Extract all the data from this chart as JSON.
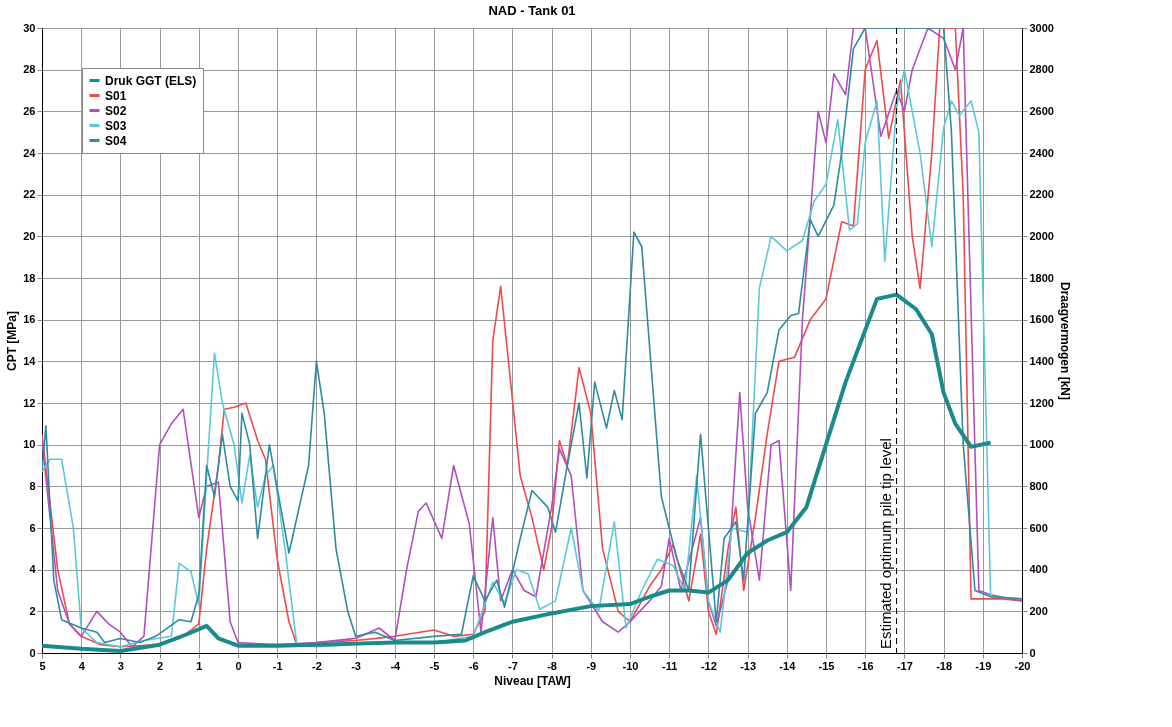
{
  "chart_data": {
    "type": "line",
    "title": "NAD - Tank 01",
    "xlabel": "Niveau [TAW]",
    "ylabel": "CPT [MPa]",
    "y2label": "Draagvermogen [kN]",
    "xlim": [
      5,
      -20
    ],
    "xticks": [
      5,
      4,
      3,
      2,
      1,
      0,
      -1,
      -2,
      -3,
      -4,
      -5,
      -6,
      -7,
      -8,
      -9,
      -10,
      -11,
      -12,
      -13,
      -14,
      -15,
      -16,
      -17,
      -18,
      -19,
      -20
    ],
    "ylim": [
      0,
      30
    ],
    "yticks": [
      0,
      2,
      4,
      6,
      8,
      10,
      12,
      14,
      16,
      18,
      20,
      22,
      24,
      26,
      28,
      30
    ],
    "y2lim": [
      0,
      3000
    ],
    "y2ticks": [
      0,
      200,
      400,
      600,
      800,
      1000,
      1200,
      1400,
      1600,
      1800,
      2000,
      2200,
      2400,
      2600,
      2800,
      3000
    ],
    "grid": true,
    "legend": "top left",
    "marker": "none",
    "line_style": "solid",
    "ref_lines": [
      {
        "axis": "x",
        "value": -16.8,
        "label": "Estimated optimum pile tip level",
        "color": "#000000",
        "line_style": "dashed"
      }
    ],
    "series": [
      {
        "name": "Druk GGT (ELS)",
        "color": "#1a8a8a",
        "axis": "y2",
        "x": [
          5,
          4,
          3,
          2,
          1.3,
          0.8,
          0.5,
          0,
          -1,
          -2,
          -3,
          -4,
          -5,
          -5.8,
          -6.3,
          -7,
          -8,
          -9,
          -10,
          -10.5,
          -11,
          -11.5,
          -12,
          -12.5,
          -13,
          -13.5,
          -14,
          -14.5,
          -15,
          -15.5,
          -16,
          -16.3,
          -16.8,
          -17.3,
          -17.7,
          -18,
          -18.3,
          -18.7,
          -19.2
        ],
        "values": [
          35,
          20,
          10,
          40,
          90,
          130,
          70,
          35,
          35,
          40,
          45,
          50,
          50,
          60,
          100,
          150,
          190,
          225,
          235,
          270,
          300,
          300,
          290,
          350,
          480,
          540,
          580,
          700,
          1000,
          1300,
          1550,
          1700,
          1720,
          1650,
          1530,
          1250,
          1100,
          990,
          1010
        ]
      },
      {
        "name": "S01",
        "color": "#f04a4a",
        "x": [
          5,
          4.6,
          4.3,
          4,
          3.5,
          3,
          2,
          1.5,
          1.2,
          1,
          0.8,
          0.5,
          0.35,
          0.1,
          -0.2,
          -0.5,
          -0.7,
          -1,
          -1.3,
          -1.5,
          -2,
          -3,
          -4,
          -5,
          -5.5,
          -6,
          -6.3,
          -6.5,
          -6.7,
          -6.9,
          -7.2,
          -7.5,
          -7.8,
          -8,
          -8.2,
          -8.4,
          -8.7,
          -9,
          -9.3,
          -9.7,
          -10,
          -10.5,
          -10.8,
          -11.1,
          -11.5,
          -11.8,
          -12,
          -12.2,
          -12.5,
          -12.7,
          -12.9,
          -13.2,
          -13.5,
          -13.8,
          -14.2,
          -14.6,
          -15,
          -15.4,
          -15.7,
          -16,
          -16.3,
          -16.6,
          -16.9,
          -17.2,
          -17.4,
          -17.7,
          -17.9,
          -18.3,
          -18.5,
          -18.7,
          -19,
          -19.5,
          -20
        ],
        "values": [
          10.5,
          4,
          1.4,
          0.8,
          0.4,
          0.3,
          0.4,
          0.7,
          1.1,
          1.4,
          5,
          9,
          11.7,
          11.8,
          12,
          10.2,
          9.3,
          4.5,
          1.5,
          0.4,
          0.5,
          0.6,
          0.8,
          1.1,
          0.8,
          0.9,
          2,
          15,
          17.6,
          14,
          8.5,
          6.5,
          4,
          6,
          10.2,
          9,
          13.7,
          11.5,
          5,
          2,
          1.5,
          3.2,
          4,
          5.2,
          2.5,
          5.7,
          2,
          0.9,
          5,
          7,
          3,
          6.5,
          10.5,
          14,
          14.2,
          16,
          17,
          20.7,
          20.5,
          28,
          29.4,
          24.7,
          27.5,
          20,
          17.5,
          24,
          30,
          30,
          22,
          2.6,
          2.6,
          2.6,
          2.5
        ]
      },
      {
        "name": "S02",
        "color": "#b050c0",
        "x": [
          5,
          4.6,
          4.3,
          4,
          3.6,
          3.3,
          3,
          2.7,
          2.4,
          2,
          1.7,
          1.4,
          1,
          0.8,
          0.5,
          0.2,
          0,
          -1,
          -2,
          -3,
          -3.6,
          -4,
          -4.3,
          -4.6,
          -4.8,
          -5.2,
          -5.5,
          -5.9,
          -6.2,
          -6.5,
          -6.7,
          -7,
          -7.3,
          -7.6,
          -8,
          -8.2,
          -8.5,
          -8.8,
          -9.3,
          -9.7,
          -10,
          -10.5,
          -10.8,
          -11,
          -11.3,
          -11.8,
          -12,
          -12.2,
          -12.5,
          -12.8,
          -13,
          -13.3,
          -13.6,
          -13.8,
          -14.1,
          -14.4,
          -14.8,
          -15,
          -15.2,
          -15.5,
          -15.7,
          -16,
          -16.4,
          -16.8,
          -17,
          -17.2,
          -17.6,
          -18,
          -18.3,
          -18.5,
          -18.9,
          -19.2,
          -20
        ],
        "values": [
          10.2,
          3,
          1.4,
          0.8,
          2,
          1.4,
          1,
          0.3,
          0.8,
          10,
          11,
          11.7,
          6.5,
          8,
          8.2,
          1.5,
          0.5,
          0.4,
          0.5,
          0.7,
          1.2,
          0.6,
          4,
          6.8,
          7.2,
          5.5,
          9,
          6.2,
          1,
          6.5,
          2.5,
          4,
          3,
          2.7,
          7,
          9.8,
          8.5,
          3,
          1.5,
          1,
          1.5,
          2.5,
          3.2,
          5.5,
          3,
          6.5,
          2.5,
          1.3,
          3.5,
          12.5,
          7,
          3.5,
          10,
          10.2,
          3,
          16,
          26,
          24.5,
          27.8,
          26.8,
          30,
          30,
          24.8,
          27,
          26,
          28,
          30,
          29.5,
          28,
          30,
          3,
          2.8,
          2.5
        ]
      },
      {
        "name": "S03",
        "color": "#5bc8dc",
        "x": [
          5,
          4.8,
          4.5,
          4.2,
          4,
          3.6,
          3,
          2.4,
          1.7,
          1.5,
          1.2,
          1,
          0.8,
          0.6,
          0.4,
          0.1,
          -0.1,
          -0.3,
          -0.5,
          -0.7,
          -0.9,
          -1.2,
          -1.5,
          -2,
          -3,
          -4,
          -5,
          -6,
          -6.5,
          -6.8,
          -7.1,
          -7.4,
          -7.7,
          -8.1,
          -8.5,
          -8.8,
          -9.2,
          -9.6,
          -9.9,
          -10.3,
          -10.7,
          -11.1,
          -11.4,
          -11.7,
          -12,
          -12.3,
          -12.6,
          -13,
          -13.3,
          -13.6,
          -14,
          -14.4,
          -14.7,
          -15,
          -15.3,
          -15.6,
          -15.8,
          -16,
          -16.3,
          -16.5,
          -16.8,
          -17,
          -17.4,
          -17.7,
          -18,
          -18.2,
          -18.4,
          -18.7,
          -18.9,
          -19.2,
          -20
        ],
        "values": [
          8.7,
          9.3,
          9.3,
          6,
          1.2,
          0.5,
          0.3,
          0.6,
          0.8,
          4.3,
          3.9,
          2.3,
          8.5,
          14.4,
          12,
          10,
          7.2,
          9.5,
          7,
          8.5,
          9,
          5,
          0.4,
          0.3,
          0.4,
          0.5,
          0.5,
          0.8,
          3.4,
          2.4,
          4,
          3.8,
          2.1,
          2.5,
          6,
          3,
          2,
          6.3,
          1.2,
          3,
          4.5,
          4.2,
          3,
          8.5,
          2.5,
          1,
          6,
          5.8,
          17.5,
          20,
          19.3,
          19.8,
          21.7,
          22.5,
          25.6,
          20.3,
          20.6,
          24.5,
          26.5,
          18.8,
          26.2,
          28,
          24,
          19.5,
          25.2,
          26.5,
          25.8,
          26.5,
          25,
          2.7,
          2.6
        ]
      },
      {
        "name": "S04",
        "color": "#2e8ca0",
        "x": [
          5,
          4.9,
          4.7,
          4.5,
          4,
          3.6,
          3.4,
          3,
          2.5,
          2.1,
          1.5,
          1.2,
          1,
          0.8,
          0.6,
          0.4,
          0.2,
          0,
          -0.1,
          -0.3,
          -0.5,
          -0.8,
          -1.3,
          -1.8,
          -2,
          -2.2,
          -2.5,
          -2.8,
          -3,
          -3.5,
          -4,
          -5,
          -5.7,
          -6,
          -6.3,
          -6.6,
          -6.8,
          -7.2,
          -7.5,
          -7.9,
          -8.1,
          -8.4,
          -8.7,
          -8.9,
          -9.1,
          -9.4,
          -9.6,
          -9.8,
          -10.1,
          -10.3,
          -10.8,
          -11.2,
          -11.5,
          -11.8,
          -12.2,
          -12.4,
          -12.7,
          -12.9,
          -13.2,
          -13.5,
          -13.8,
          -14.1,
          -14.3,
          -14.6,
          -14.8,
          -15.2,
          -15.4,
          -15.7,
          -16,
          -17,
          -18,
          -18.2,
          -18.5,
          -18.8,
          -19.2,
          -20
        ],
        "values": [
          8.8,
          10.9,
          3.5,
          1.6,
          1.2,
          1,
          0.5,
          0.7,
          0.5,
          0.8,
          1.6,
          1.5,
          2.8,
          9,
          7.5,
          10.5,
          8,
          7.3,
          11.5,
          10,
          5.5,
          10,
          4.8,
          9,
          14,
          11.5,
          5,
          2,
          0.8,
          1,
          0.6,
          0.8,
          0.9,
          3.7,
          2.5,
          3.5,
          2.2,
          5.5,
          7.8,
          7,
          5.8,
          9,
          12,
          8.4,
          13,
          10.8,
          12.6,
          11.2,
          20.2,
          19.5,
          7.5,
          4.5,
          3,
          10.5,
          1.5,
          5.5,
          6.3,
          3.5,
          11.5,
          12.5,
          15.5,
          16.2,
          16.3,
          20.8,
          20,
          21.5,
          24,
          29,
          30,
          30,
          30,
          25,
          10,
          3,
          2.7,
          2.6
        ]
      }
    ]
  }
}
